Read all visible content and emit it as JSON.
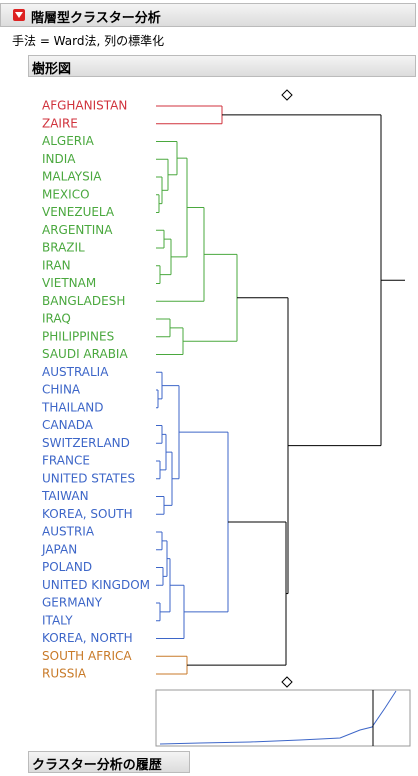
{
  "header": {
    "title": "階層型クラスター分析",
    "method": "手法 = Ward法, 列の標準化"
  },
  "dendrogram": {
    "title": "樹形図",
    "clusters": [
      {
        "color": "#d0323c",
        "leaves": [
          "AFGHANISTAN",
          "ZAIRE"
        ]
      },
      {
        "color": "#4aa83e",
        "leaves": [
          "ALGERIA",
          "INDIA",
          "MALAYSIA",
          "MEXICO",
          "VENEZUELA",
          "ARGENTINA",
          "BRAZIL",
          "IRAN",
          "VIETNAM",
          "BANGLADESH",
          "IRAQ",
          "PHILIPPINES",
          "SAUDI ARABIA"
        ]
      },
      {
        "color": "#3d66c8",
        "leaves": [
          "AUSTRALIA",
          "CHINA",
          "THAILAND",
          "CANADA",
          "SWITZERLAND",
          "FRANCE",
          "UNITED STATES",
          "TAIWAN",
          "KOREA, SOUTH",
          "AUSTRIA",
          "JAPAN",
          "POLAND",
          "UNITED KINGDOM",
          "GERMANY",
          "ITALY",
          "KOREA, NORTH"
        ]
      },
      {
        "color": "#c87a28",
        "leaves": [
          "SOUTH AFRICA",
          "RUSSIA"
        ]
      }
    ]
  },
  "history": {
    "title": "クラスター分析の履歴"
  }
}
